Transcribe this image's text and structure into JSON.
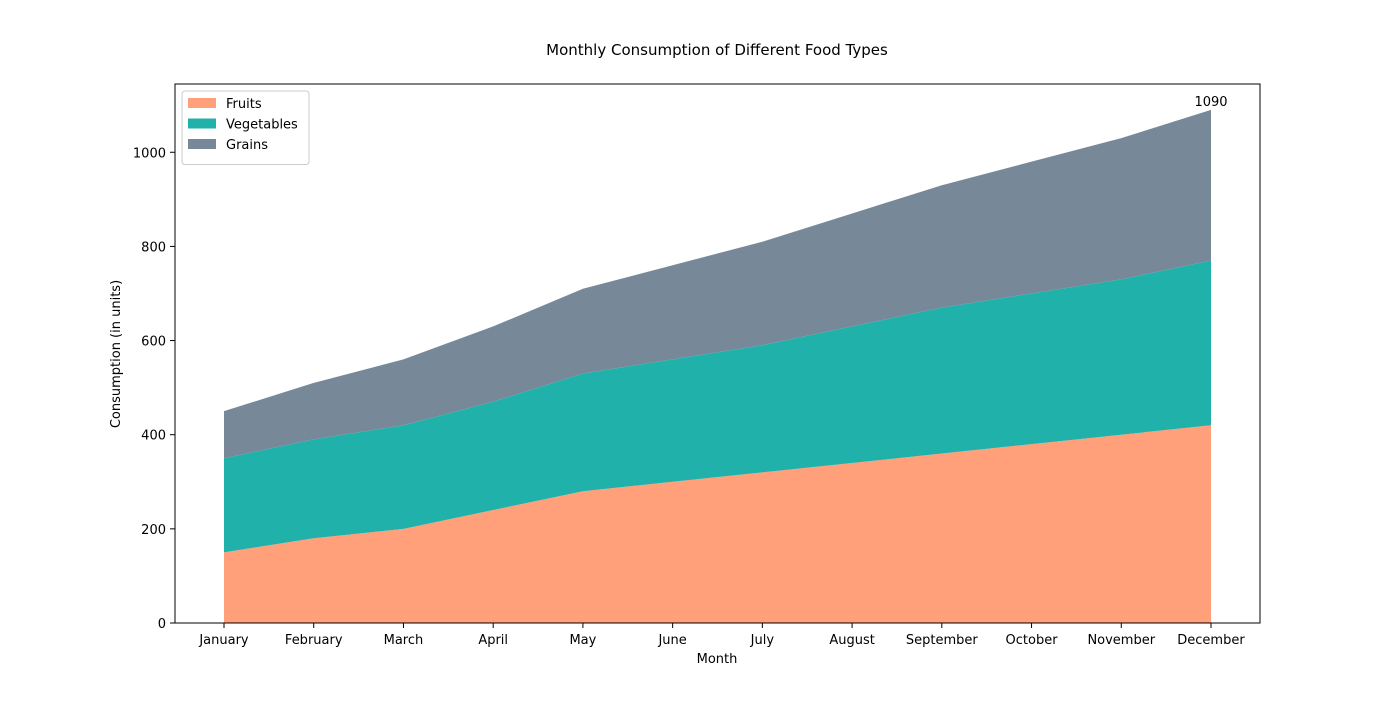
{
  "chart_data": {
    "type": "area",
    "stacked": true,
    "title": "Monthly Consumption of Different Food Types",
    "xlabel": "Month",
    "ylabel": "Consumption (in units)",
    "categories": [
      "January",
      "February",
      "March",
      "April",
      "May",
      "June",
      "July",
      "August",
      "September",
      "October",
      "November",
      "December"
    ],
    "series": [
      {
        "name": "Fruits",
        "color": "#ffa07a",
        "values": [
          150,
          180,
          200,
          240,
          280,
          300,
          320,
          340,
          360,
          380,
          400,
          420
        ]
      },
      {
        "name": "Vegetables",
        "color": "#20b2aa",
        "values": [
          200,
          210,
          220,
          230,
          250,
          260,
          270,
          290,
          310,
          320,
          330,
          350
        ]
      },
      {
        "name": "Grains",
        "color": "#778899",
        "values": [
          100,
          120,
          140,
          160,
          180,
          200,
          220,
          240,
          260,
          280,
          300,
          320
        ]
      }
    ],
    "ylim": [
      0,
      1145
    ],
    "yticks": [
      0,
      200,
      400,
      600,
      800,
      1000
    ],
    "annotation": {
      "category": "December",
      "value": 1090,
      "label": "1090"
    },
    "grid": false,
    "legend_position": "top-left"
  }
}
